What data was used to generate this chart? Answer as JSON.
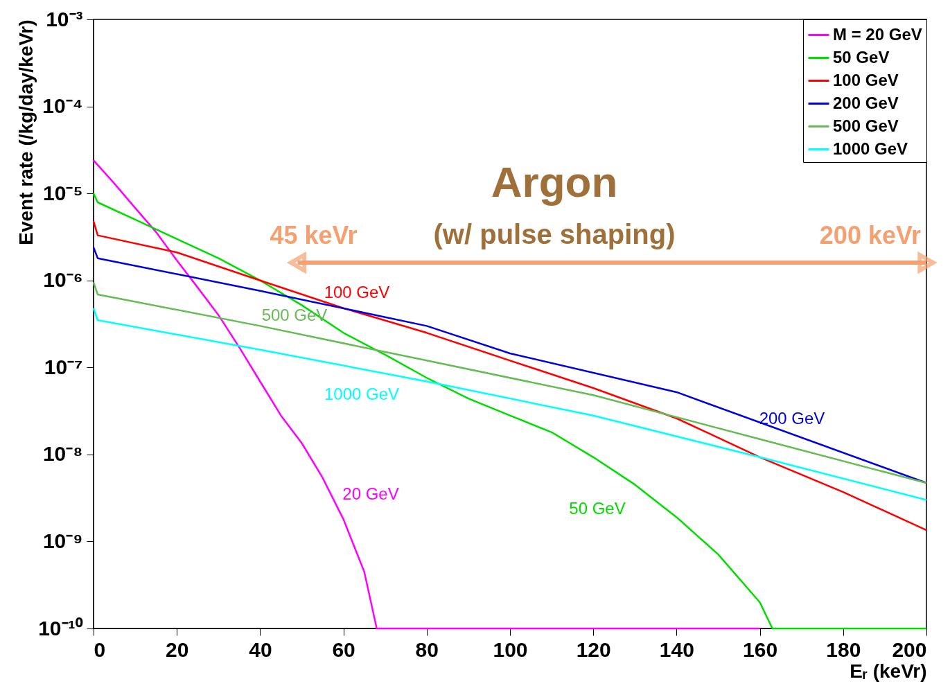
{
  "chart_data": {
    "type": "line",
    "xlabel": "Eᵣ (keVr)",
    "ylabel": "Event rate (/kg/day/keVr)",
    "log": "y",
    "xlim": [
      0,
      200
    ],
    "xticks": [
      0,
      20,
      40,
      60,
      80,
      100,
      120,
      140,
      160,
      180,
      200
    ],
    "ylim": [
      1e-10,
      0.001
    ],
    "yticks": [
      {
        "value": 1e-10,
        "label": "10⁻¹⁰"
      },
      {
        "value": 1e-09,
        "label": "10⁻⁹"
      },
      {
        "value": 1e-08,
        "label": "10⁻⁸"
      },
      {
        "value": 1e-07,
        "label": "10⁻⁷"
      },
      {
        "value": 1e-06,
        "label": "10⁻⁶"
      },
      {
        "value": 1e-05,
        "label": "10⁻⁵"
      },
      {
        "value": 0.0001,
        "label": "10⁻⁴"
      },
      {
        "value": 0.001,
        "label": "10⁻³"
      }
    ],
    "grid": false,
    "legend": "top right",
    "marker": "none",
    "line_style": "solid",
    "series": [
      {
        "name": "M = 20 GeV",
        "color": "#ff00ff",
        "x": [
          0,
          5,
          10,
          15,
          20,
          25,
          30,
          35,
          40,
          45,
          50,
          55,
          60,
          65,
          68,
          70,
          160
        ],
        "values": [
          2.4e-05,
          1.3e-05,
          6.8e-06,
          3.6e-06,
          1.7e-06,
          8.3e-07,
          4e-07,
          1.7e-07,
          6.9e-08,
          2.8e-08,
          1.35e-08,
          5.4e-09,
          1.8e-09,
          4.5e-10,
          1e-10,
          1e-10,
          1e-10
        ]
      },
      {
        "name": "50 GeV",
        "color": "#00dd00",
        "x": [
          0,
          1,
          10,
          20,
          30,
          40,
          50,
          60,
          70,
          80,
          90,
          100,
          110,
          120,
          130,
          140,
          150,
          160,
          163,
          200
        ],
        "values": [
          1e-05,
          7.9e-06,
          5e-06,
          3e-06,
          1.8e-06,
          1e-06,
          5.2e-07,
          2.5e-07,
          1.4e-07,
          7.6e-08,
          4.4e-08,
          2.8e-08,
          1.8e-08,
          9.3e-09,
          4.5e-09,
          1.9e-09,
          7.1e-10,
          2e-10,
          1e-10,
          1e-10
        ]
      },
      {
        "name": "100 GeV",
        "color": "#ff0000",
        "x": [
          0,
          1,
          20,
          40,
          60,
          80,
          100,
          120,
          140,
          160,
          180,
          200
        ],
        "values": [
          4.8e-06,
          3.3e-06,
          2.1e-06,
          1e-06,
          4.8e-07,
          2.5e-07,
          1.2e-07,
          5.8e-08,
          2.6e-08,
          9.3e-09,
          3.7e-09,
          1.35e-09
        ]
      },
      {
        "name": "200 GeV",
        "color": "#0000dd",
        "x": [
          0,
          1,
          40,
          80,
          100,
          140,
          200
        ],
        "values": [
          2.4e-06,
          1.8e-06,
          7.6e-07,
          3e-07,
          1.45e-07,
          5.2e-08,
          4.7e-09
        ]
      },
      {
        "name": "500 GeV",
        "color": "#66bb55",
        "x": [
          0,
          1,
          40,
          80,
          120,
          160,
          200
        ],
        "values": [
          9.5e-07,
          6.9e-07,
          3e-07,
          1.2e-07,
          4.8e-08,
          1.5e-08,
          4.7e-09
        ]
      },
      {
        "name": "1000 GeV",
        "color": "#00ffff",
        "x": [
          0,
          1,
          40,
          80,
          120,
          160,
          200
        ],
        "values": [
          4.8e-07,
          3.5e-07,
          1.6e-07,
          6.9e-08,
          2.8e-08,
          9.3e-09,
          3e-09
        ]
      }
    ],
    "annotations": [
      "20 GeV",
      "50 GeV",
      "100 GeV",
      "200 GeV",
      "500 GeV",
      "1000 GeV",
      "Argon",
      "(w/ pulse shaping)",
      {
        "text": "45 keVr",
        "x": 49,
        "y": 1.6e-06
      },
      {
        "text": "200 keVr",
        "x": 200,
        "y": 1.6e-06
      }
    ]
  }
}
